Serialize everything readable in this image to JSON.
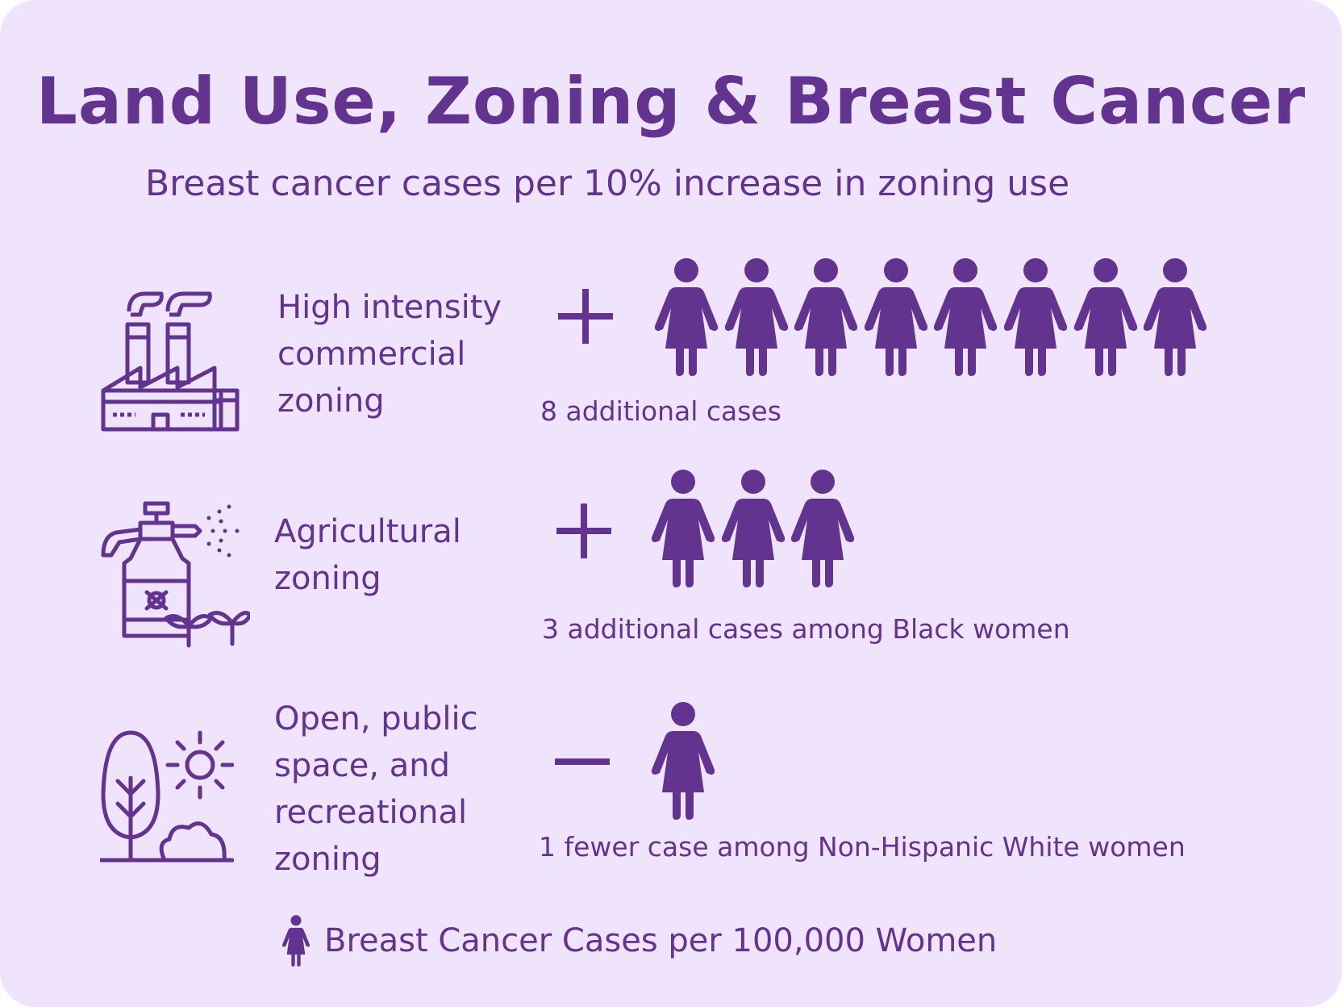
{
  "title": "Land Use, Zoning & Breast Cancer",
  "subtitle": "Breast cancer cases per 10% increase in zoning use",
  "colors": {
    "background": "#efe4fb",
    "accent": "#62338f"
  },
  "rows": [
    {
      "label": "High intensity\ncommercial\nzoning",
      "icon": "factory-icon",
      "sign": "+",
      "count": 8,
      "text": "8 additional cases"
    },
    {
      "label": "Agricultural\nzoning",
      "icon": "pesticide-sprayer-icon",
      "sign": "+",
      "count": 3,
      "text": "3 additional cases among Black women"
    },
    {
      "label": "Open, public\nspace, and\nrecreational\nzoning",
      "icon": "park-tree-sun-icon",
      "sign": "−",
      "count": 1,
      "text": "1 fewer case among Non-Hispanic White women"
    }
  ],
  "legend": {
    "icon": "woman-icon",
    "text": "Breast Cancer Cases per 100,000 Women"
  }
}
